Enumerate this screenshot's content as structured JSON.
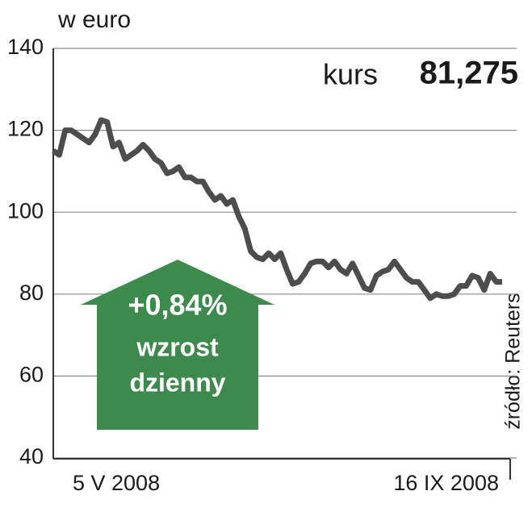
{
  "chart_data": {
    "type": "line",
    "y_label": "w euro",
    "annotation": {
      "label": "kurs",
      "value": "81,275"
    },
    "badge": {
      "change": "+0,84%",
      "line1": "wzrost",
      "line2": "dzienny",
      "color": "#3e8a4c"
    },
    "source": "źródło: Reuters",
    "categories": [
      "5 V 2008",
      null,
      null,
      null,
      null,
      null,
      null,
      null,
      null,
      null,
      null,
      null,
      null,
      null,
      null,
      null,
      null,
      null,
      null,
      null,
      null,
      null,
      null,
      null,
      null,
      null,
      null,
      null,
      null,
      null,
      null,
      null,
      null,
      null,
      null,
      null,
      null,
      null,
      null,
      null,
      null,
      null,
      null,
      null,
      null,
      null,
      null,
      null,
      null,
      null,
      null,
      null,
      null,
      null,
      null,
      null,
      null,
      null,
      null,
      null,
      null,
      null,
      null,
      null,
      null,
      null,
      null,
      null,
      null,
      null,
      null,
      null,
      null,
      null,
      null,
      "16 IX 2008"
    ],
    "series": [
      {
        "name": "kurs",
        "color": "#4d4d4d",
        "values": [
          115,
          114,
          120,
          120,
          119,
          118,
          117,
          119,
          122.5,
          122,
          116,
          117,
          113,
          114,
          115,
          116.5,
          115,
          113,
          112,
          109.5,
          110,
          111,
          108.5,
          108.5,
          107.5,
          107.5,
          105,
          103,
          104,
          102,
          103,
          99,
          96,
          90.5,
          89,
          88.5,
          90,
          88.5,
          90,
          86,
          82.5,
          83,
          85,
          87.5,
          88,
          88,
          86.5,
          88,
          86,
          85,
          87.5,
          84.5,
          81.5,
          81,
          84.5,
          85.5,
          86,
          88,
          86,
          84,
          83,
          83,
          81,
          79,
          80,
          79.5,
          79.5,
          80,
          82,
          82,
          84.5,
          84,
          81,
          85,
          83,
          83
        ]
      }
    ],
    "ylim": [
      40,
      140
    ],
    "yticks": [
      40,
      60,
      80,
      100,
      120,
      140
    ],
    "grid": true
  }
}
